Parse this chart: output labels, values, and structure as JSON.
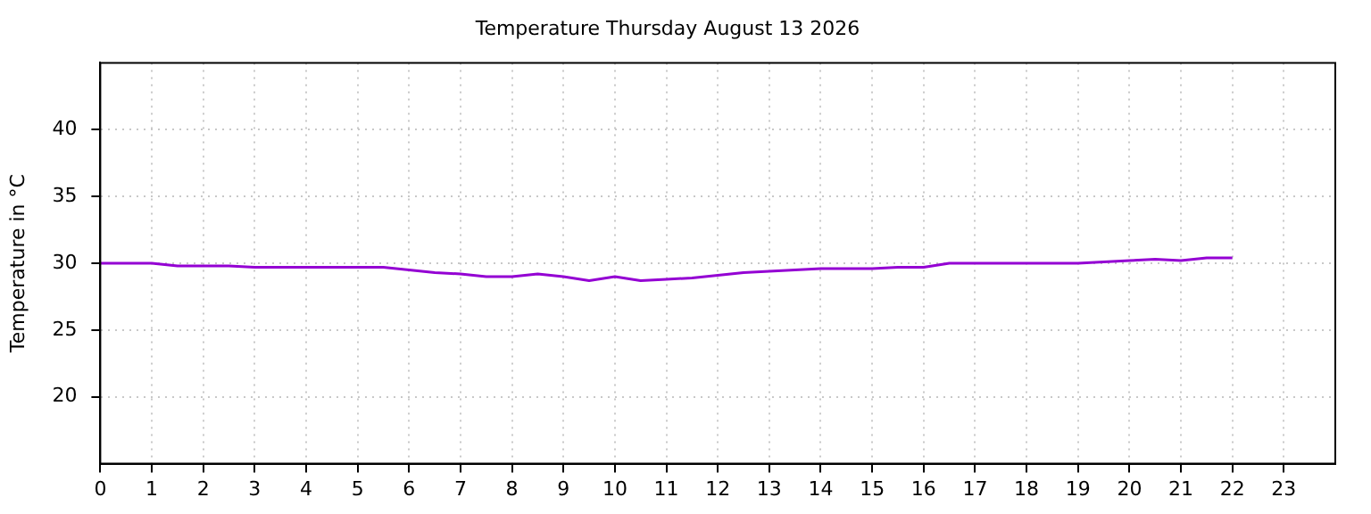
{
  "chart_data": {
    "type": "line",
    "title": "Temperature Thursday August 13 2026",
    "ylabel": "Temperature in °C",
    "x": [
      0,
      1,
      1.5,
      2.5,
      3,
      5.5,
      6,
      6.5,
      7,
      7.5,
      8,
      8.5,
      9,
      9.5,
      10,
      10.5,
      11,
      11.5,
      12,
      12.5,
      13,
      13.5,
      14,
      15,
      15.5,
      16,
      16.5,
      19,
      19.5,
      20,
      20.5,
      21,
      21.5,
      22
    ],
    "series": [
      {
        "color": "#9400d3",
        "values": [
          30,
          30,
          29.8,
          29.8,
          29.7,
          29.7,
          29.5,
          29.3,
          29.2,
          29,
          29,
          29.2,
          29,
          28.7,
          29,
          28.7,
          28.8,
          28.9,
          29.1,
          29.3,
          29.4,
          29.5,
          29.6,
          29.6,
          29.7,
          29.7,
          30,
          30,
          30.1,
          30.2,
          30.3,
          30.2,
          30.4,
          30.4
        ]
      }
    ],
    "xlim": [
      0,
      24
    ],
    "xticks": [
      0,
      1,
      2,
      3,
      4,
      5,
      6,
      7,
      8,
      9,
      10,
      11,
      12,
      13,
      14,
      15,
      16,
      17,
      18,
      19,
      20,
      21,
      22,
      23
    ],
    "ylim": [
      15,
      45
    ],
    "yticks": [
      20,
      25,
      30,
      35,
      40
    ],
    "grid": true,
    "legend": false,
    "marker": "none",
    "line_style": "solid"
  }
}
